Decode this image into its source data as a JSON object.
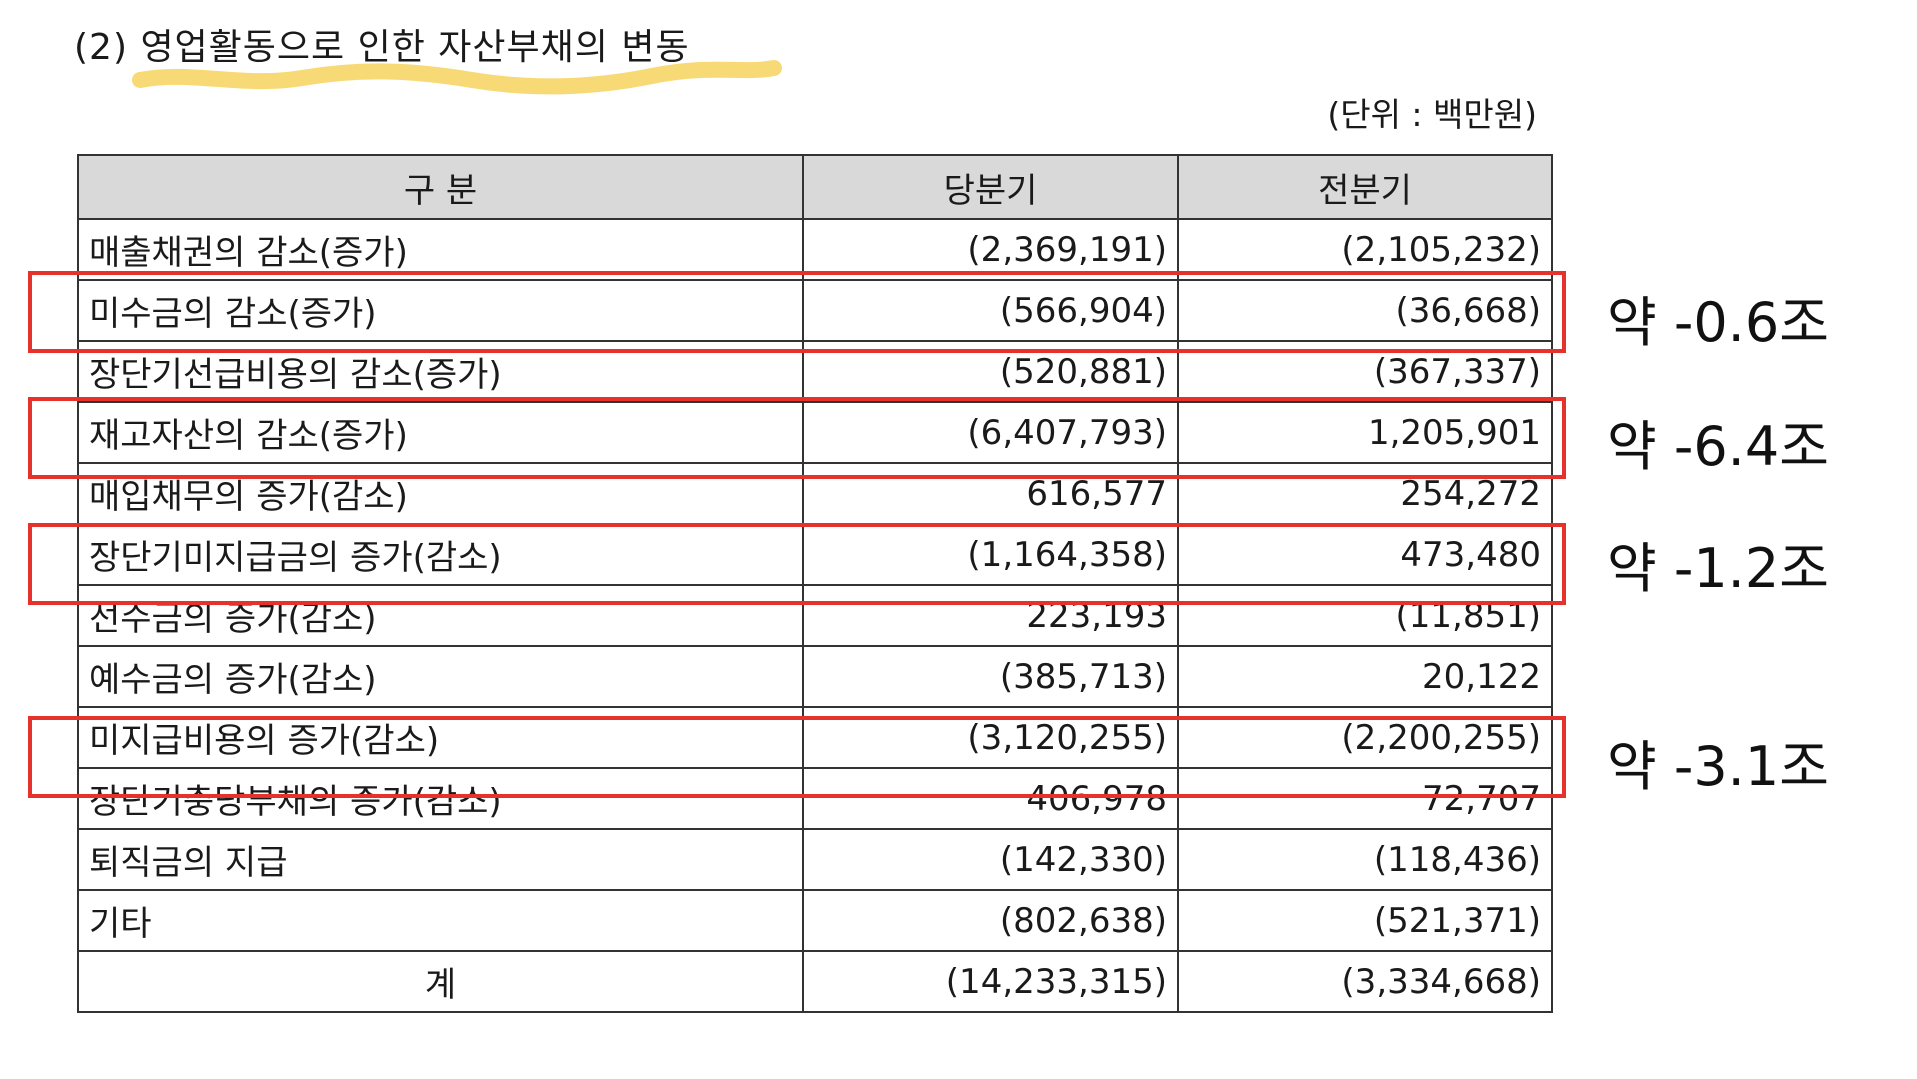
{
  "section": {
    "title": "(2) 영업활동으로 인한 자산부채의 변동",
    "unit": "(단위 : 백만원)"
  },
  "table": {
    "headers": [
      "구      분",
      "당분기",
      "전분기"
    ],
    "rows": [
      {
        "label": "매출채권의 감소(증가)",
        "current": "(2,369,191)",
        "previous": "(2,105,232)"
      },
      {
        "label": "미수금의 감소(증가)",
        "current": "(566,904)",
        "previous": "(36,668)"
      },
      {
        "label": "장단기선급비용의 감소(증가)",
        "current": "(520,881)",
        "previous": "(367,337)"
      },
      {
        "label": "재고자산의 감소(증가)",
        "current": "(6,407,793)",
        "previous": "1,205,901"
      },
      {
        "label": "매입채무의 증가(감소)",
        "current": "616,577",
        "previous": "254,272"
      },
      {
        "label": "장단기미지급금의 증가(감소)",
        "current": "(1,164,358)",
        "previous": "473,480"
      },
      {
        "label": "선수금의 증가(감소)",
        "current": "223,193",
        "previous": "(11,851)"
      },
      {
        "label": "예수금의 증가(감소)",
        "current": "(385,713)",
        "previous": "20,122"
      },
      {
        "label": "미지급비용의 증가(감소)",
        "current": "(3,120,255)",
        "previous": "(2,200,255)"
      },
      {
        "label": "장단기충당부채의 증가(감소)",
        "current": "406,978",
        "previous": "72,707"
      },
      {
        "label": "퇴직금의 지급",
        "current": "(142,330)",
        "previous": "(118,436)"
      },
      {
        "label": "기타",
        "current": "(802,638)",
        "previous": "(521,371)"
      }
    ],
    "total": {
      "label": "계",
      "current": "(14,233,315)",
      "previous": "(3,334,668)"
    }
  },
  "annotations": [
    {
      "row": 1,
      "text": "약 -0.6조"
    },
    {
      "row": 3,
      "text": "약 -6.4조"
    },
    {
      "row": 5,
      "text": "약 -1.2조"
    },
    {
      "row": 8,
      "text": "약 -3.1조"
    }
  ],
  "colors": {
    "highlight": "#f6d35e",
    "box": "#e5322d",
    "header_bg": "#d9d9d9"
  }
}
